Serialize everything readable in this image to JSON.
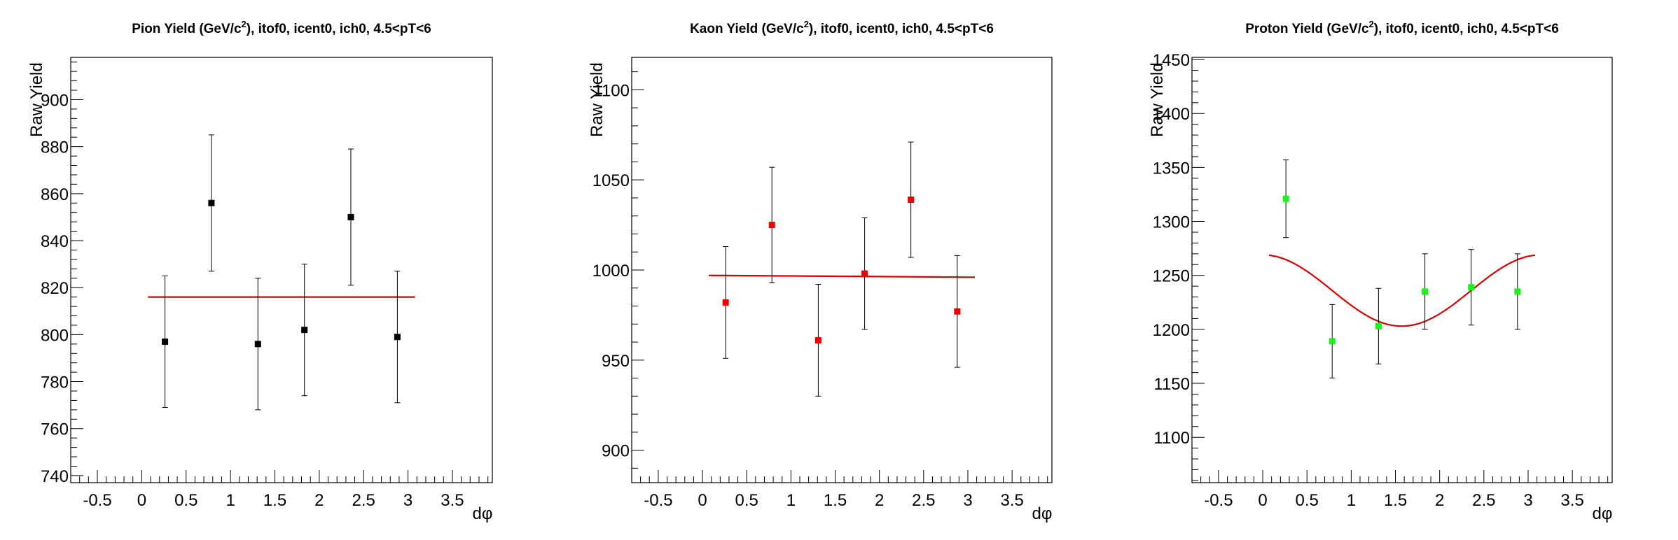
{
  "chart_data": [
    {
      "type": "scatter",
      "title_main": "Pion Yield (GeV/c",
      "title_sup": "2",
      "title_rest": "), itof0, icent0, ich0, 4.5<pT<6",
      "xlabel": "dφ",
      "ylabel": "Raw Yield",
      "xlim": [
        -0.8,
        3.95
      ],
      "ylim": [
        737,
        918
      ],
      "xticks": [
        -0.5,
        0,
        0.5,
        1,
        1.5,
        2,
        2.5,
        3,
        3.5
      ],
      "xtick_labels": [
        "-0.5",
        "0",
        "0.5",
        "1",
        "1.5",
        "2",
        "2.5",
        "3",
        "3.5"
      ],
      "yticks": [
        740,
        760,
        780,
        800,
        820,
        840,
        860,
        880,
        900
      ],
      "ytick_labels": [
        "740",
        "760",
        "780",
        "800",
        "820",
        "840",
        "860",
        "880",
        "900"
      ],
      "marker_color": "#000000",
      "fit_color": "#dd0000",
      "series": [
        {
          "x": [
            0.262,
            0.785,
            1.309,
            1.833,
            2.356,
            2.88
          ],
          "y": [
            797,
            856,
            796,
            802,
            850,
            799
          ],
          "err": [
            28,
            29,
            28,
            28,
            29,
            28
          ]
        }
      ],
      "fit": {
        "x": [
          0.07,
          3.08
        ],
        "y": [
          816,
          816
        ]
      }
    },
    {
      "type": "scatter",
      "title_main": "Kaon Yield (GeV/c",
      "title_sup": "2",
      "title_rest": "), itof0, icent0, ich0, 4.5<pT<6",
      "xlabel": "dφ",
      "ylabel": "Raw Yield",
      "xlim": [
        -0.8,
        3.95
      ],
      "ylim": [
        882,
        1118
      ],
      "xticks": [
        -0.5,
        0,
        0.5,
        1,
        1.5,
        2,
        2.5,
        3,
        3.5
      ],
      "xtick_labels": [
        "-0.5",
        "0",
        "0.5",
        "1",
        "1.5",
        "2",
        "2.5",
        "3",
        "3.5"
      ],
      "yticks": [
        900,
        950,
        1000,
        1050,
        1100
      ],
      "ytick_labels": [
        "900",
        "950",
        "1000",
        "1050",
        "1100"
      ],
      "marker_color": "#ee0000",
      "fit_color": "#dd0000",
      "series": [
        {
          "x": [
            0.262,
            0.785,
            1.309,
            1.833,
            2.356,
            2.88
          ],
          "y": [
            982,
            1025,
            961,
            998,
            1039,
            977
          ],
          "err": [
            31,
            32,
            31,
            31,
            32,
            31
          ]
        }
      ],
      "fit": {
        "x": [
          0.07,
          3.08
        ],
        "y": [
          997,
          996
        ]
      }
    },
    {
      "type": "scatter",
      "title_main": "Proton Yield (GeV/c",
      "title_sup": "2",
      "title_rest": "), itof0, icent0, ich0, 4.5<pT<6",
      "xlabel": "dφ",
      "ylabel": "Raw Yield",
      "xlim": [
        -0.8,
        3.95
      ],
      "ylim": [
        1058,
        1452
      ],
      "xticks": [
        -0.5,
        0,
        0.5,
        1,
        1.5,
        2,
        2.5,
        3,
        3.5
      ],
      "xtick_labels": [
        "-0.5",
        "0",
        "0.5",
        "1",
        "1.5",
        "2",
        "2.5",
        "3",
        "3.5"
      ],
      "yticks": [
        1100,
        1150,
        1200,
        1250,
        1300,
        1350,
        1400,
        1450
      ],
      "ytick_labels": [
        "1100",
        "1150",
        "1200",
        "1250",
        "1300",
        "1350",
        "1400",
        "1450"
      ],
      "marker_color": "#22ee22",
      "fit_color": "#dd0000",
      "series": [
        {
          "x": [
            0.262,
            0.785,
            1.309,
            1.833,
            2.356,
            2.88
          ],
          "y": [
            1321,
            1189,
            1203,
            1235,
            1239,
            1235
          ],
          "err": [
            36,
            34,
            35,
            35,
            35,
            35
          ]
        }
      ],
      "fit": {
        "type": "cos2",
        "x": [
          0.07,
          3.08
        ],
        "a": 1236,
        "b": 33
      }
    }
  ]
}
